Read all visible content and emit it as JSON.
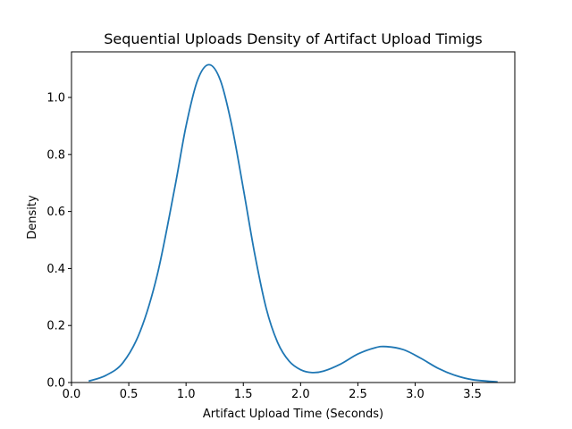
{
  "chart_data": {
    "type": "line",
    "title": "Sequential Uploads Density of Artifact Upload Timigs",
    "xlabel": "Artifact Upload Time (Seconds)",
    "ylabel": "Density",
    "xlim": [
      0.0,
      3.87
    ],
    "ylim": [
      0.0,
      1.16
    ],
    "x_ticks": [
      "0.0",
      "0.5",
      "1.0",
      "1.5",
      "2.0",
      "2.5",
      "3.0",
      "3.5"
    ],
    "y_ticks": [
      "0.0",
      "0.2",
      "0.4",
      "0.6",
      "0.8",
      "1.0"
    ],
    "grid": false,
    "legend": "none",
    "series": [
      {
        "color": "#1f77b4",
        "x": [
          0.15,
          0.3,
          0.45,
          0.6,
          0.75,
          0.9,
          1.0,
          1.1,
          1.2,
          1.3,
          1.4,
          1.5,
          1.6,
          1.7,
          1.8,
          1.9,
          2.0,
          2.1,
          2.2,
          2.35,
          2.5,
          2.65,
          2.75,
          2.9,
          3.05,
          3.2,
          3.35,
          3.5,
          3.72
        ],
        "y": [
          0.005,
          0.025,
          0.07,
          0.18,
          0.38,
          0.68,
          0.9,
          1.06,
          1.115,
          1.06,
          0.9,
          0.68,
          0.45,
          0.26,
          0.14,
          0.075,
          0.045,
          0.035,
          0.04,
          0.065,
          0.1,
          0.122,
          0.126,
          0.115,
          0.085,
          0.05,
          0.025,
          0.01,
          0.002
        ]
      }
    ]
  }
}
